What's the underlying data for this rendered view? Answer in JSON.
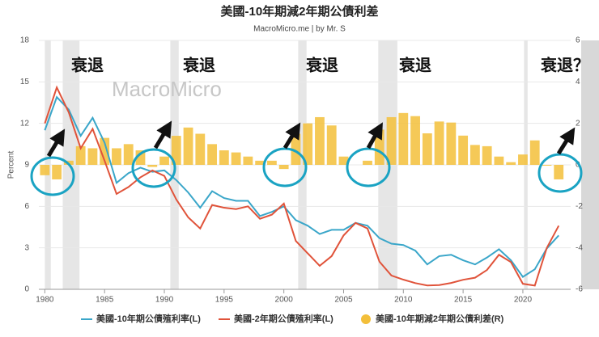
{
  "chart_data": {
    "type": "bar_line_dual",
    "title": "美國-10年期減2年期公債利差",
    "subtitle": "MacroMicro.me | by Mr. S",
    "watermark": "MacroMicro",
    "y_label": "Percent",
    "x": [
      1980,
      1981,
      1982,
      1983,
      1984,
      1985,
      1986,
      1987,
      1988,
      1989,
      1990,
      1991,
      1992,
      1993,
      1994,
      1995,
      1996,
      1997,
      1998,
      1999,
      2000,
      2001,
      2002,
      2003,
      2004,
      2005,
      2006,
      2007,
      2008,
      2009,
      2010,
      2011,
      2012,
      2013,
      2014,
      2015,
      2016,
      2017,
      2018,
      2019,
      2020,
      2021,
      2022,
      2023
    ],
    "series": [
      {
        "name": "美國-10年期公債殖利率(L)",
        "color": "#3aa6c9",
        "kind": "line",
        "values": [
          11.5,
          13.9,
          13.0,
          11.1,
          12.4,
          10.6,
          7.7,
          8.4,
          8.8,
          8.5,
          8.6,
          7.9,
          7.0,
          5.9,
          7.1,
          6.6,
          6.4,
          6.4,
          5.3,
          5.6,
          6.0,
          5.0,
          4.6,
          4.0,
          4.3,
          4.3,
          4.8,
          4.6,
          3.7,
          3.3,
          3.2,
          2.8,
          1.8,
          2.4,
          2.5,
          2.1,
          1.8,
          2.3,
          2.9,
          2.1,
          0.9,
          1.45,
          2.95,
          3.9
        ]
      },
      {
        "name": "美國-2年期公債殖利率(L)",
        "color": "#e0533a",
        "kind": "line",
        "values": [
          12.0,
          14.6,
          12.8,
          10.2,
          11.6,
          9.3,
          6.9,
          7.4,
          8.1,
          8.6,
          8.2,
          6.5,
          5.2,
          4.4,
          6.1,
          5.9,
          5.8,
          6.0,
          5.1,
          5.4,
          6.2,
          3.5,
          2.6,
          1.7,
          2.4,
          3.9,
          4.8,
          4.4,
          2.0,
          1.0,
          0.7,
          0.45,
          0.28,
          0.31,
          0.46,
          0.69,
          0.84,
          1.4,
          2.5,
          1.97,
          0.4,
          0.27,
          2.99,
          4.6
        ]
      },
      {
        "name": "美國-10年期減2年期公債利差(R)",
        "color": "#f3bf3a",
        "kind": "bar",
        "axis": "y2",
        "values": [
          -0.5,
          -0.7,
          0.2,
          0.9,
          0.8,
          1.3,
          0.8,
          1.0,
          0.7,
          -0.1,
          0.4,
          1.4,
          1.8,
          1.5,
          1.0,
          0.7,
          0.6,
          0.4,
          0.2,
          0.2,
          -0.2,
          1.5,
          2.0,
          2.3,
          1.9,
          0.4,
          0,
          0.2,
          1.7,
          2.3,
          2.5,
          2.35,
          1.52,
          2.09,
          2.04,
          1.41,
          0.96,
          0.9,
          0.4,
          0.13,
          0.5,
          1.18,
          -0.04,
          -0.7
        ]
      }
    ],
    "recessions": [
      [
        1980.0,
        1980.5
      ],
      [
        1981.5,
        1982.9
      ],
      [
        1990.5,
        1991.2
      ],
      [
        2001.2,
        2001.9
      ],
      [
        2007.9,
        2009.5
      ],
      [
        2020.1,
        2020.4
      ]
    ],
    "annotations": [
      "衰退",
      "衰退",
      "衰退",
      "衰退",
      "衰退？"
    ],
    "xlim": [
      1979.5,
      2024
    ],
    "xticks": [
      1980,
      1985,
      1990,
      1995,
      2000,
      2005,
      2010,
      2015,
      2020
    ],
    "ylim": [
      0,
      18
    ],
    "yticks": [
      0,
      3,
      6,
      9,
      12,
      15,
      18
    ],
    "y2lim": [
      -6,
      6
    ],
    "y2ticks": [
      -6,
      -4,
      -2,
      0,
      2,
      4,
      6
    ],
    "grid": true
  }
}
